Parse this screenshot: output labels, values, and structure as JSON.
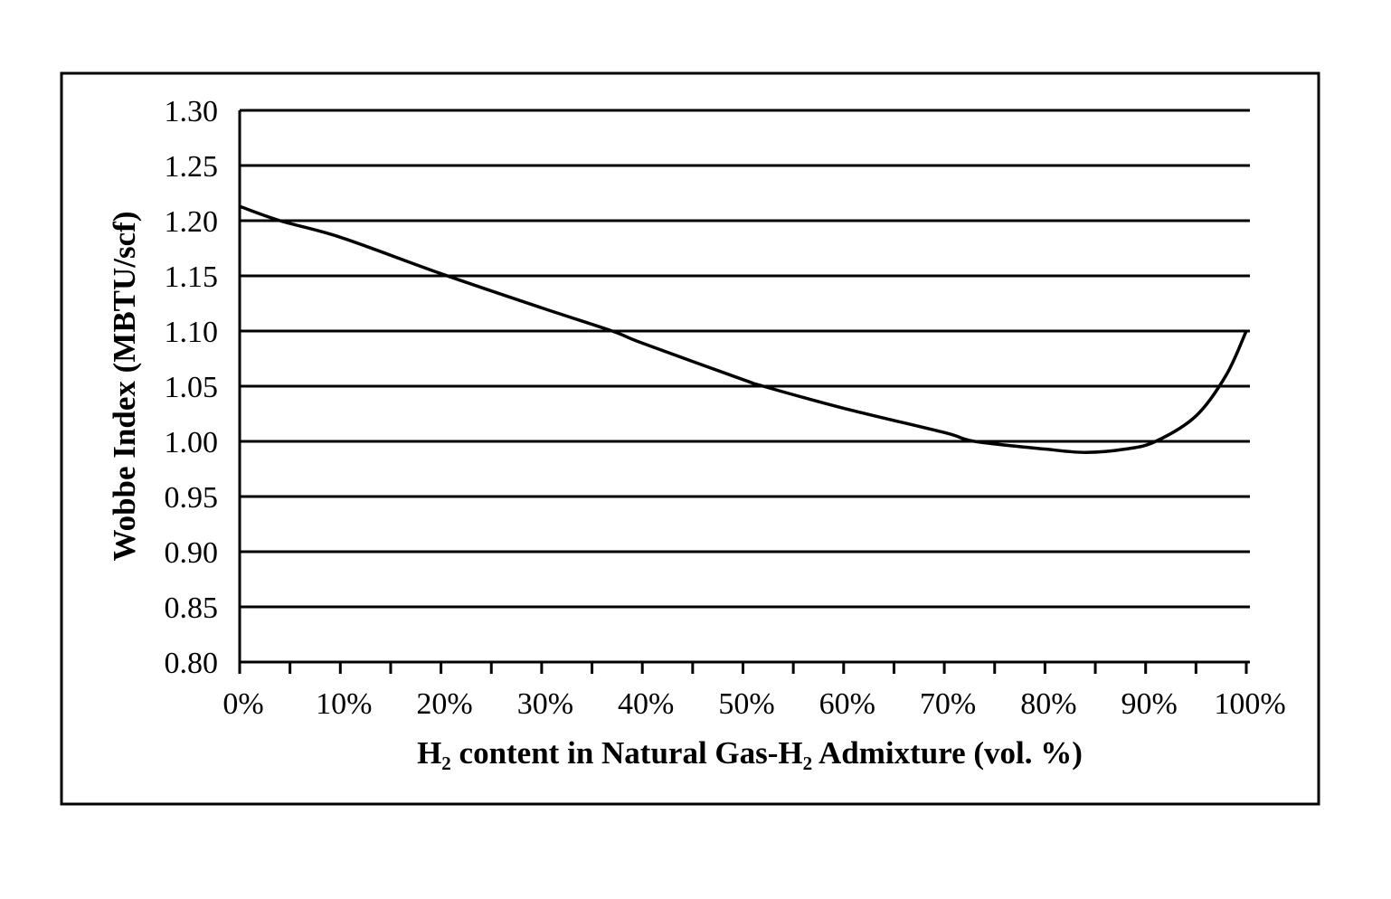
{
  "chart_data": {
    "type": "line",
    "title": "",
    "xlabel": "H₂ content in Natural Gas-H₂ Admixture (vol. %)",
    "ylabel": "Wobbe Index (MBTU/scf)",
    "xlim": [
      0,
      100
    ],
    "ylim": [
      0.8,
      1.3
    ],
    "grid": "horizontal",
    "x_ticks": [
      0,
      10,
      20,
      30,
      40,
      50,
      60,
      70,
      80,
      90,
      100
    ],
    "x_tick_labels": [
      "0%",
      "10%",
      "20%",
      "30%",
      "40%",
      "50%",
      "60%",
      "70%",
      "80%",
      "90%",
      "100%"
    ],
    "y_ticks": [
      0.8,
      0.85,
      0.9,
      0.95,
      1.0,
      1.05,
      1.1,
      1.15,
      1.2,
      1.25,
      1.3
    ],
    "y_tick_labels": [
      "0.80",
      "0.85",
      "0.90",
      "0.95",
      "1.00",
      "1.05",
      "1.10",
      "1.15",
      "1.20",
      "1.25",
      "1.30"
    ],
    "series": [
      {
        "name": "Wobbe Index",
        "color": "#000000",
        "x": [
          0,
          4,
          10,
          20,
          30,
          37,
          40,
          50,
          52,
          60,
          70,
          73,
          80,
          84,
          88,
          91,
          95,
          98,
          100
        ],
        "y": [
          1.213,
          1.2,
          1.185,
          1.152,
          1.121,
          1.1,
          1.089,
          1.056,
          1.05,
          1.03,
          1.008,
          1.0,
          0.993,
          0.99,
          0.993,
          1.0,
          1.023,
          1.06,
          1.1
        ]
      }
    ]
  }
}
